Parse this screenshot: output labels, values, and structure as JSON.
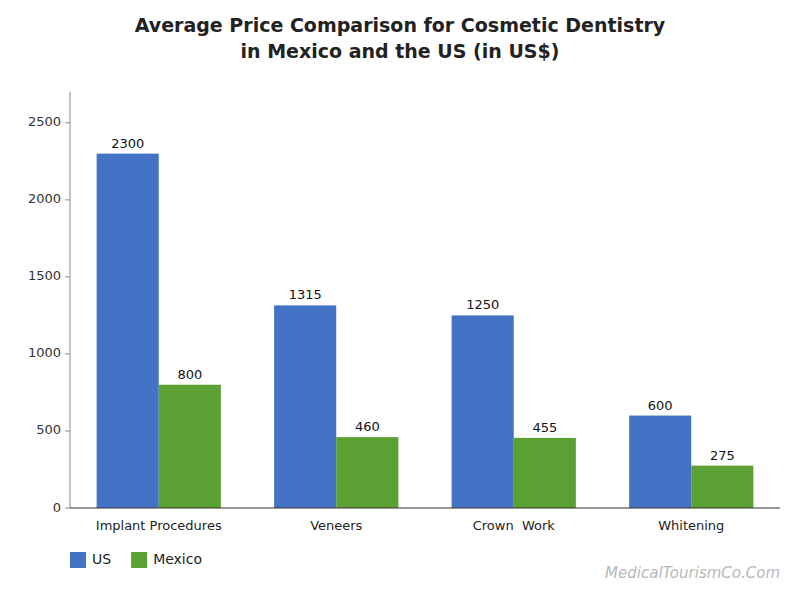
{
  "chart_data": {
    "type": "bar",
    "title": "Average Price Comparison for Cosmetic Dentistry",
    "subtitle": "in Mexico and the US (in US$)",
    "categories": [
      "Implant Procedures",
      "Veneers",
      "Crown  Work",
      "Whitening"
    ],
    "series": [
      {
        "name": "US",
        "color": "#4472C4",
        "values": [
          2300,
          1315,
          1250,
          600
        ]
      },
      {
        "name": "Mexico",
        "color": "#5BA032",
        "values": [
          800,
          460,
          455,
          275
        ]
      }
    ],
    "ylim": [
      0,
      2700
    ],
    "yticks": [
      0,
      500,
      1000,
      1500,
      2000,
      2500
    ],
    "grid": false,
    "legend": "bottom-left",
    "data_labels": true,
    "annotations": [
      "MedicalTourismCo.Com"
    ]
  }
}
